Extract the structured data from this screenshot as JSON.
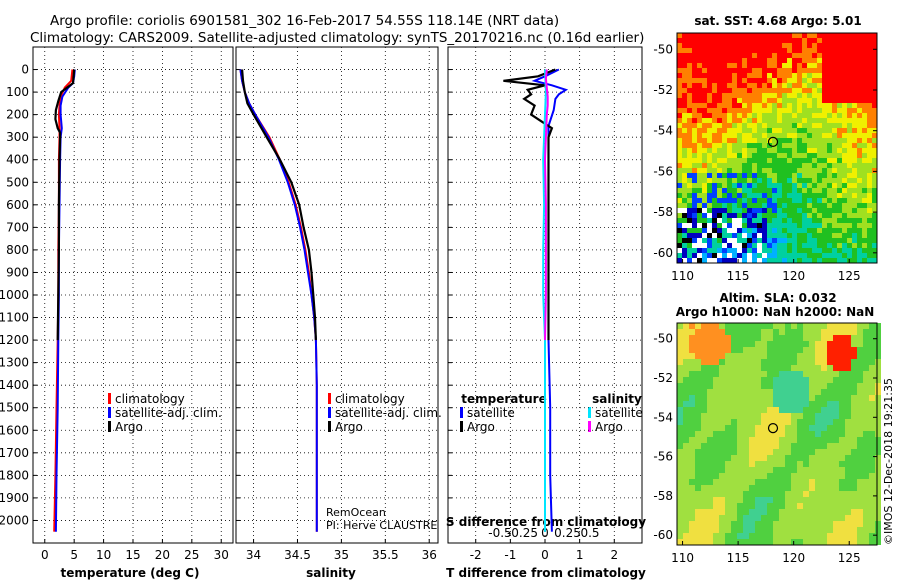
{
  "header": {
    "line1": "Argo profile: coriolis 6901581_302 16-Feb-2017 54.55S 118.14E (NRT data)",
    "line2": "Climatology: CARS2009. Satellite-adjusted climatology: synTS_20170216.nc (0.16d earlier)"
  },
  "colors": {
    "climatology": "#ff0000",
    "satellite_adj": "#0000ff",
    "argo": "#000000",
    "sat_temp": "#0000ff",
    "sat_sal": "#00e6ff",
    "argo_sal": "#ff00ff"
  },
  "chart_data": [
    {
      "type": "line",
      "id": "temperature",
      "xlabel": "temperature (deg C)",
      "ylabel": "",
      "xlim": [
        -2,
        32
      ],
      "ylim": [
        2100,
        -100
      ],
      "xticks": [
        "0",
        "5",
        "10",
        "15",
        "20",
        "25",
        "30"
      ],
      "depth_ticks": [
        "0",
        "100",
        "200",
        "300",
        "400",
        "500",
        "600",
        "700",
        "800",
        "900",
        "1000",
        "1100",
        "1200",
        "1300",
        "1400",
        "1500",
        "1600",
        "1700",
        "1800",
        "1900",
        "2000"
      ],
      "legend": [
        "climatology",
        "satellite-adj. clim.",
        "Argo"
      ],
      "series": [
        {
          "name": "climatology",
          "depth": [
            0,
            50,
            80,
            120,
            160,
            200,
            260,
            300,
            400,
            600,
            800,
            1000,
            1200,
            1500,
            1800,
            2050
          ],
          "values": [
            4.7,
            4.5,
            3.4,
            2.7,
            2.5,
            2.4,
            2.5,
            2.5,
            2.4,
            2.4,
            2.3,
            2.3,
            2.2,
            2.0,
            1.8,
            1.6
          ]
        },
        {
          "name": "satellite-adj. clim.",
          "depth": [
            0,
            30,
            60,
            80,
            120,
            160,
            200,
            260,
            300,
            400,
            600,
            800,
            1000,
            1200,
            1500,
            1800,
            2050
          ],
          "values": [
            5.1,
            5.0,
            4.8,
            4.0,
            3.0,
            2.7,
            2.7,
            2.9,
            2.7,
            2.6,
            2.5,
            2.4,
            2.4,
            2.3,
            2.2,
            2.0,
            1.9
          ]
        },
        {
          "name": "Argo",
          "depth": [
            0,
            30,
            60,
            80,
            100,
            140,
            180,
            220,
            260,
            280,
            300,
            400,
            600,
            800,
            1000,
            1200
          ],
          "values": [
            5.0,
            4.9,
            4.8,
            3.8,
            2.8,
            2.3,
            1.9,
            1.8,
            2.2,
            2.6,
            2.6,
            2.5,
            2.4,
            2.4,
            2.3,
            2.2
          ]
        }
      ]
    },
    {
      "type": "line",
      "id": "salinity",
      "xlabel": "salinity",
      "xlim": [
        33.8,
        36.1
      ],
      "ylim": [
        2100,
        -100
      ],
      "xticks": [
        "34",
        "34.5",
        "35",
        "35.5",
        "36"
      ],
      "legend": [
        "climatology",
        "satellite-adj. clim.",
        "Argo"
      ],
      "annotation": [
        "RemOcean",
        "PI: Herve CLAUSTRE"
      ],
      "series": [
        {
          "name": "climatology",
          "depth": [
            0,
            50,
            100,
            150,
            200,
            300,
            400,
            500,
            600,
            700,
            800,
            900,
            1000,
            1100,
            1200,
            1400,
            1600,
            1800,
            2050
          ],
          "values": [
            33.85,
            33.87,
            33.9,
            33.95,
            34.02,
            34.18,
            34.3,
            34.4,
            34.48,
            34.54,
            34.59,
            34.63,
            34.66,
            34.69,
            34.71,
            34.72,
            34.72,
            34.72,
            34.72
          ]
        },
        {
          "name": "satellite-adj. clim.",
          "depth": [
            0,
            50,
            100,
            150,
            200,
            300,
            400,
            500,
            600,
            700,
            800,
            900,
            1000,
            1100,
            1200,
            1400,
            1600,
            1800,
            2050
          ],
          "values": [
            33.85,
            33.87,
            33.9,
            33.95,
            34.02,
            34.17,
            34.29,
            34.39,
            34.47,
            34.53,
            34.58,
            34.62,
            34.66,
            34.69,
            34.71,
            34.72,
            34.72,
            34.72,
            34.72
          ]
        },
        {
          "name": "Argo",
          "depth": [
            0,
            50,
            100,
            150,
            200,
            300,
            400,
            500,
            600,
            700,
            800,
            900,
            1000,
            1100,
            1200
          ],
          "values": [
            33.87,
            33.88,
            33.9,
            33.93,
            34.0,
            34.15,
            34.3,
            34.43,
            34.52,
            34.57,
            34.63,
            34.66,
            34.68,
            34.7,
            34.71
          ]
        }
      ]
    },
    {
      "type": "line",
      "id": "difference",
      "xlabel": "T difference from climatology",
      "xlabel_top": "S difference from climatology",
      "xlim": [
        -2.8,
        2.8
      ],
      "ylim": [
        2100,
        -100
      ],
      "xticks": [
        "-2",
        "-1",
        "0",
        "1",
        "2"
      ],
      "sticks": [
        "-0.5",
        "-0.25",
        "0",
        "0.25",
        "0.5"
      ],
      "legend_left_title": "temperature",
      "legend_right_title": "salinity",
      "legend_left": [
        "satellite",
        "Argo"
      ],
      "legend_right": [
        "satellite",
        "Argo"
      ],
      "series": [
        {
          "name": "T satellite",
          "depth": [
            0,
            30,
            50,
            70,
            90,
            110,
            130,
            180,
            250,
            300,
            400,
            600,
            800,
            1000,
            1200,
            1500,
            1800,
            2050
          ],
          "values": [
            0.4,
            0.0,
            -0.3,
            0.2,
            0.6,
            0.4,
            0.3,
            0.25,
            0.1,
            0.1,
            0.1,
            0.1,
            0.1,
            0.1,
            0.1,
            0.15,
            0.15,
            0.2
          ]
        },
        {
          "name": "T Argo",
          "depth": [
            0,
            30,
            50,
            70,
            90,
            110,
            130,
            160,
            200,
            230,
            260,
            300,
            400,
            600,
            800,
            1000,
            1200
          ],
          "values": [
            0.3,
            -0.2,
            -1.2,
            0.0,
            -0.5,
            -0.4,
            -0.6,
            -0.3,
            -0.4,
            -0.1,
            0.2,
            0.1,
            0.1,
            0.1,
            0.1,
            0.1,
            0.1
          ]
        },
        {
          "name": "S satellite",
          "depth": [
            0,
            100,
            200,
            300,
            400,
            600,
            800,
            1000,
            1200,
            1500,
            1800,
            2050
          ],
          "values": [
            0.0,
            0.01,
            0.0,
            -0.01,
            -0.02,
            -0.01,
            -0.02,
            -0.02,
            0.0,
            0.0,
            0.0,
            0.0
          ]
        },
        {
          "name": "S Argo",
          "depth": [
            0,
            40,
            80,
            120,
            160,
            200,
            300,
            400,
            600,
            800,
            1000,
            1200
          ],
          "values": [
            0.02,
            0.01,
            0.02,
            0.03,
            0.03,
            0.02,
            0.01,
            0.0,
            0.01,
            0.01,
            0.01,
            0.0
          ]
        }
      ]
    },
    {
      "type": "heatmap",
      "id": "sst_map",
      "title": "sat. SST: 4.68 Argo: 5.01",
      "xticks": [
        "110",
        "115",
        "120",
        "125"
      ],
      "yticks": [
        "-50",
        "-52",
        "-54",
        "-56",
        "-58",
        "-60"
      ],
      "xlim": [
        109.5,
        127.5
      ],
      "ylim": [
        -60.5,
        -49.2
      ],
      "marker": {
        "lon": 118.14,
        "lat": -54.55
      }
    },
    {
      "type": "heatmap",
      "id": "sla_map",
      "title": "Altim. SLA: 0.032",
      "subtitle": "Argo h1000: NaN h2000: NaN",
      "xticks": [
        "110",
        "115",
        "120",
        "125"
      ],
      "yticks": [
        "-50",
        "-52",
        "-54",
        "-56",
        "-58",
        "-60"
      ],
      "xlim": [
        109.5,
        127.5
      ],
      "ylim": [
        -60.5,
        -49.2
      ],
      "marker": {
        "lon": 118.14,
        "lat": -54.55
      }
    }
  ],
  "watermark": "©IMOS 12-Dec-2018 19:21:35"
}
